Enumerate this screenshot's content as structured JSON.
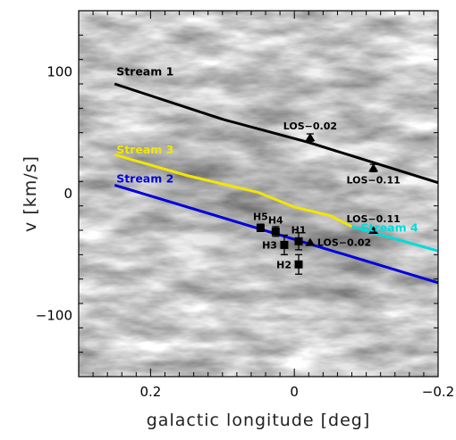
{
  "chart_data": {
    "type": "line",
    "title": "",
    "xlabel": "galactic longitude [deg]",
    "ylabel": "v [km/s]",
    "xlim": [
      0.3,
      -0.2
    ],
    "ylim": [
      -150,
      150
    ],
    "x_reversed": true,
    "x_ticks": [
      {
        "value": 0.2,
        "label": "0.2"
      },
      {
        "value": 0,
        "label": "0"
      },
      {
        "value": -0.2,
        "label": "−0.2"
      }
    ],
    "y_ticks": [
      {
        "value": 100,
        "label": "100"
      },
      {
        "value": 0,
        "label": "0"
      },
      {
        "value": -100,
        "label": "−100"
      }
    ],
    "background": "grayscale intensity map",
    "series": [
      {
        "name": "Stream 1",
        "color": "#000000",
        "label_at": [
          0.25,
          100
        ],
        "x": [
          0.25,
          0.1,
          -0.02,
          -0.2
        ],
        "y": [
          90,
          61,
          42,
          9
        ]
      },
      {
        "name": "Stream 3",
        "color": "#f2e600",
        "label_at": [
          0.25,
          36
        ],
        "x": [
          0.25,
          0.15,
          0.05,
          0.0,
          -0.05,
          -0.08
        ],
        "y": [
          32,
          15,
          1,
          -11,
          -18,
          -27
        ]
      },
      {
        "name": "Stream 4",
        "color": "#00dcdc",
        "label_at": [
          -0.09,
          -28
        ],
        "x": [
          -0.08,
          -0.2
        ],
        "y": [
          -27,
          -47
        ]
      },
      {
        "name": "Stream 2",
        "color": "#0000dd",
        "label_at": [
          0.25,
          12
        ],
        "x": [
          0.25,
          -0.2
        ],
        "y": [
          7,
          -73
        ]
      }
    ],
    "points": [
      {
        "label": "LOS−0.02",
        "marker": "triangle",
        "x": -0.022,
        "y": 46,
        "err": 3,
        "label_pos": "top"
      },
      {
        "label": "LOS−0.11",
        "marker": "triangle",
        "x": -0.11,
        "y": 21,
        "err": 3,
        "label_pos": "bottom"
      },
      {
        "label": "LOS−0.11",
        "marker": "triangle",
        "x": -0.11,
        "y": -30,
        "err": 0,
        "label_pos": "top"
      },
      {
        "label": "LOS−0.02",
        "marker": "triangle",
        "x": -0.022,
        "y": -40,
        "err": 0,
        "label_pos": "right"
      },
      {
        "label": "H5",
        "marker": "square",
        "x": 0.047,
        "y": -28,
        "err": 3,
        "label_pos": "top"
      },
      {
        "label": "H4",
        "marker": "square",
        "x": 0.026,
        "y": -31,
        "err": 4,
        "label_pos": "top"
      },
      {
        "label": "H3",
        "marker": "square",
        "x": 0.014,
        "y": -42,
        "err": 8,
        "label_pos": "left"
      },
      {
        "label": "H1",
        "marker": "square",
        "x": -0.006,
        "y": -39,
        "err": 7,
        "label_pos": "top"
      },
      {
        "label": "H2",
        "marker": "square",
        "x": -0.006,
        "y": -58,
        "err": 8,
        "label_pos": "left"
      }
    ]
  }
}
